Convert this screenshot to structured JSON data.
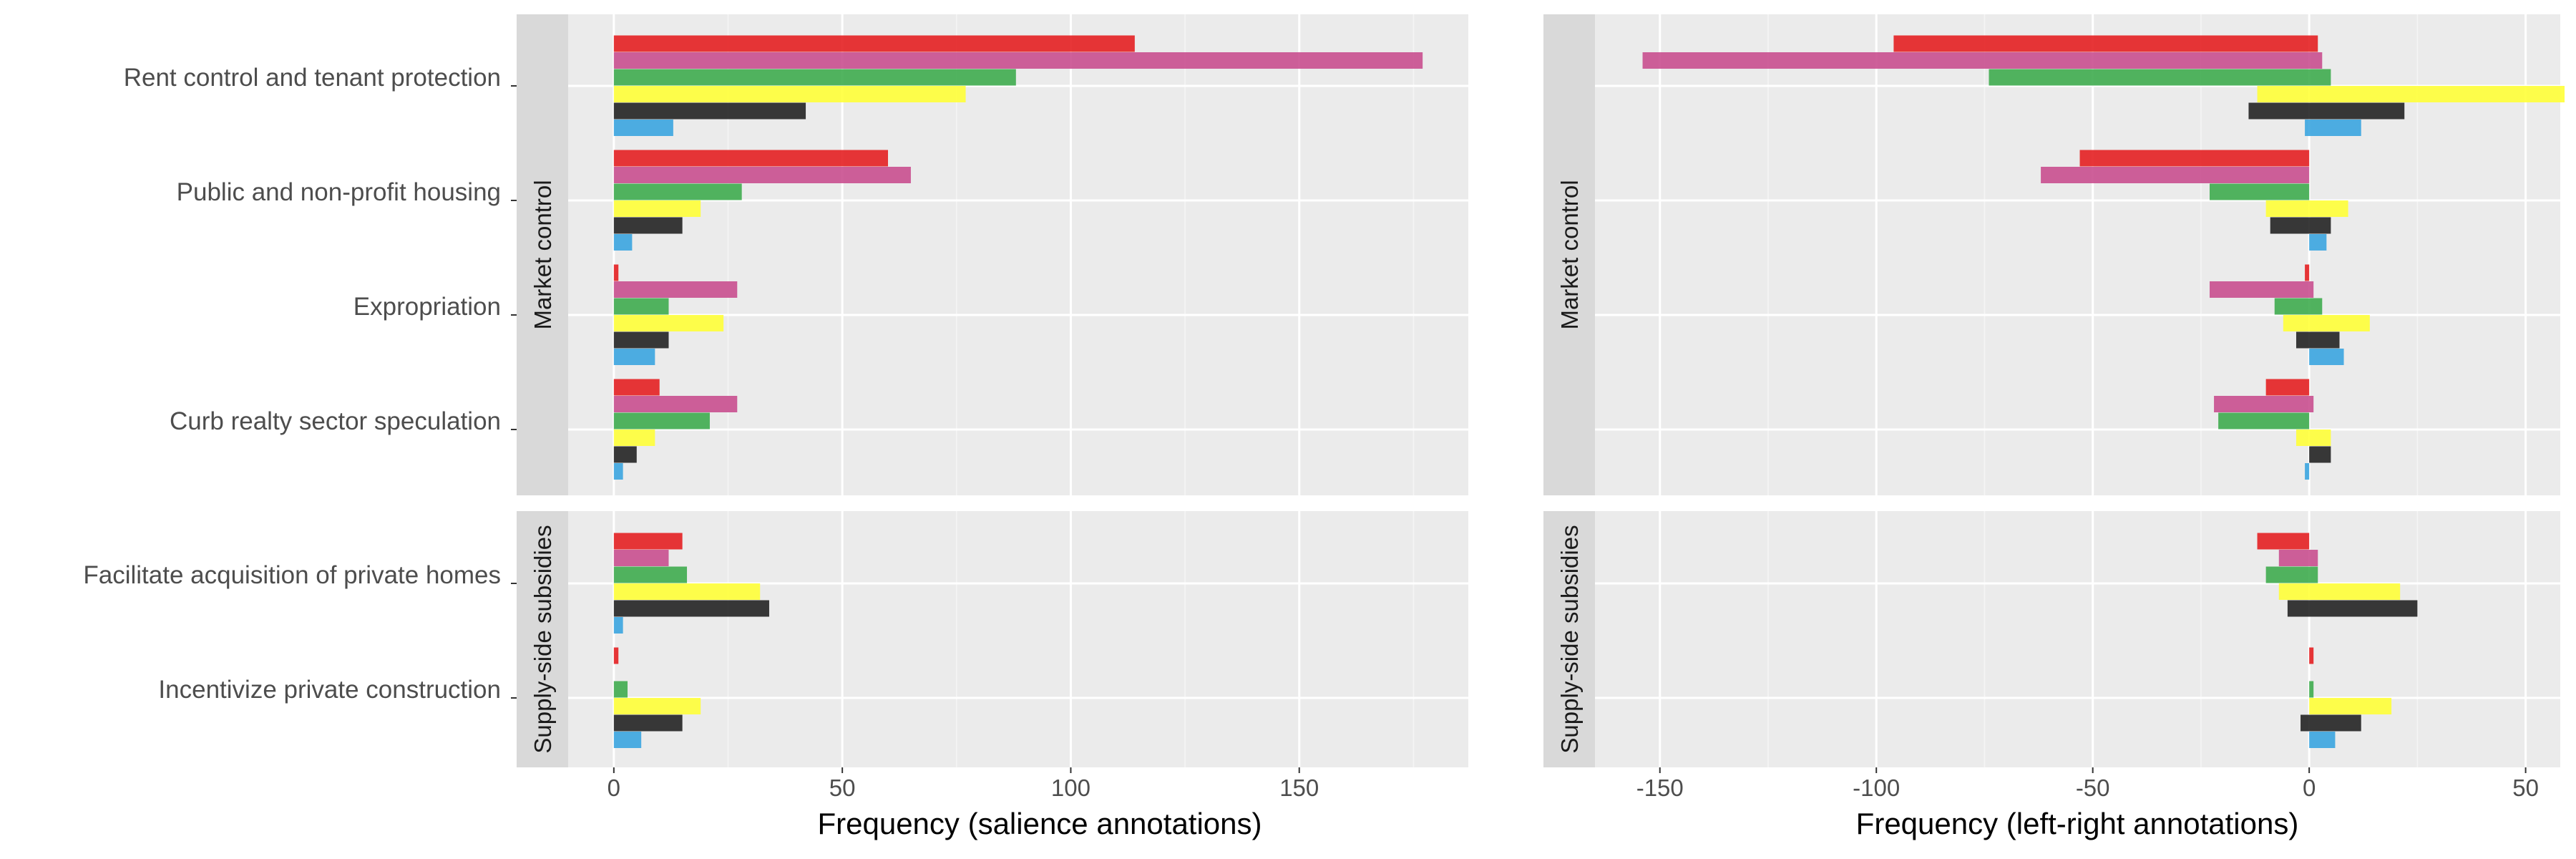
{
  "chart_data": {
    "type": "bar",
    "orientation": "horizontal",
    "facets": {
      "rows": [
        "Market control",
        "Supply-side subsidies"
      ],
      "row_categories": [
        [
          "Rent control and tenant protection",
          "Public and non-profit housing",
          "Expropriation",
          "Curb realty sector speculation"
        ],
        [
          "Facilitate acquisition of private homes",
          "Incentivize private construction"
        ]
      ]
    },
    "series_colors": [
      "#E41A1C",
      "#C74A8C",
      "#3AAA4A",
      "#FFFF33",
      "#1E1E1E",
      "#35A3DF"
    ],
    "panels": [
      {
        "xlabel": "Frequency (salience annotations)",
        "xlim": [
          -10,
          187
        ],
        "xticks": [
          0,
          50,
          100,
          150
        ],
        "xtick_labels": [
          "0",
          "50",
          "100",
          "150"
        ],
        "grid": true,
        "values": {
          "Rent control and tenant protection": [
            114,
            177,
            88,
            77,
            42,
            13
          ],
          "Public and non-profit housing": [
            60,
            65,
            28,
            19,
            15,
            4
          ],
          "Expropriation": [
            1,
            27,
            12,
            24,
            12,
            9
          ],
          "Curb realty sector speculation": [
            10,
            27,
            21,
            9,
            5,
            2
          ],
          "Facilitate acquisition of private homes": [
            15,
            12,
            16,
            32,
            34,
            2
          ],
          "Incentivize private construction": [
            1,
            0,
            3,
            19,
            15,
            6
          ]
        }
      },
      {
        "xlabel": "Frequency (left-right annotations)",
        "xlim": [
          -165,
          58
        ],
        "xticks": [
          -150,
          -100,
          -50,
          0,
          50
        ],
        "xtick_labels": [
          "-150",
          "-100",
          "-50",
          "0",
          "50"
        ],
        "grid": true,
        "values": {
          "Rent control and tenant protection": [
            [
              [
                -96,
                2
              ]
            ],
            [
              [
                -154,
                3
              ]
            ],
            [
              [
                -74,
                5
              ]
            ],
            [
              [
                -12,
                59
              ]
            ],
            [
              [
                -14,
                22
              ]
            ],
            [
              [
                -1,
                12
              ]
            ]
          ],
          "Public and non-profit housing": [
            [
              [
                -53,
                0
              ]
            ],
            [
              [
                -62,
                0
              ]
            ],
            [
              [
                -23,
                0
              ]
            ],
            [
              [
                -10,
                9
              ]
            ],
            [
              [
                -9,
                5
              ]
            ],
            [
              [
                0,
                4
              ]
            ]
          ],
          "Expropriation": [
            [
              [
                -1,
                0
              ]
            ],
            [
              [
                -23,
                1
              ]
            ],
            [
              [
                -8,
                3
              ]
            ],
            [
              [
                -6,
                14
              ]
            ],
            [
              [
                -3,
                7
              ]
            ],
            [
              [
                0,
                8
              ]
            ]
          ],
          "Curb realty sector speculation": [
            [
              [
                -10,
                0
              ]
            ],
            [
              [
                -22,
                1
              ]
            ],
            [
              [
                -21,
                0
              ]
            ],
            [
              [
                -3,
                5
              ]
            ],
            [
              [
                0,
                5
              ]
            ],
            [
              [
                -1,
                0
              ]
            ]
          ],
          "Facilitate acquisition of private homes": [
            [
              [
                -12,
                0
              ]
            ],
            [
              [
                -7,
                2
              ]
            ],
            [
              [
                -10,
                2
              ]
            ],
            [
              [
                -7,
                21
              ]
            ],
            [
              [
                -5,
                25
              ]
            ],
            [
              [
                0,
                0
              ]
            ]
          ],
          "Incentivize private construction": [
            [
              [
                0,
                1
              ]
            ],
            [
              [
                0,
                0
              ]
            ],
            [
              [
                0,
                1
              ]
            ],
            [
              [
                0,
                19
              ]
            ],
            [
              [
                -2,
                12
              ]
            ],
            [
              [
                0,
                6
              ]
            ]
          ]
        }
      }
    ]
  }
}
